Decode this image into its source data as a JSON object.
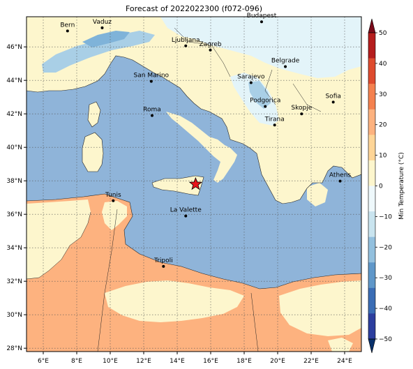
{
  "title": "Forecast of 2022022300 (f072-096)",
  "colors": {
    "sea": "#8fb4d9",
    "land_cool": "#e3f4f9",
    "land_mild": "#fdf6cd",
    "land_warm": "#fdb27f",
    "cold_band": "#a9cfe6",
    "colder_band": "#7fb3d9",
    "star": "#e8141b"
  },
  "axes": {
    "x_ticks": [
      "6°E",
      "8°E",
      "10°E",
      "12°E",
      "14°E",
      "16°E",
      "18°E",
      "20°E",
      "22°E",
      "24°E"
    ],
    "y_ticks": [
      "28°N",
      "30°N",
      "32°N",
      "34°N",
      "36°N",
      "38°N",
      "40°N",
      "42°N",
      "44°N",
      "46°N"
    ],
    "lon_range": [
      5,
      25
    ],
    "lat_range": [
      27.8,
      47.8
    ],
    "grid": true
  },
  "cities": [
    {
      "name": "Bern",
      "lon": 7.45,
      "lat": 46.95
    },
    {
      "name": "Vaduz",
      "lon": 9.52,
      "lat": 47.14
    },
    {
      "name": "Budapest",
      "lon": 19.04,
      "lat": 47.5
    },
    {
      "name": "Ljubljana",
      "lon": 14.51,
      "lat": 46.06
    },
    {
      "name": "Zagreb",
      "lon": 15.98,
      "lat": 45.81
    },
    {
      "name": "Belgrade",
      "lon": 20.46,
      "lat": 44.82
    },
    {
      "name": "San Marino",
      "lon": 12.45,
      "lat": 43.94
    },
    {
      "name": "Sarajevo",
      "lon": 18.41,
      "lat": 43.86
    },
    {
      "name": "Sofia",
      "lon": 23.32,
      "lat": 42.7
    },
    {
      "name": "Podgorica",
      "lon": 19.26,
      "lat": 42.44
    },
    {
      "name": "Skopje",
      "lon": 21.43,
      "lat": 42.0
    },
    {
      "name": "Roma",
      "lon": 12.5,
      "lat": 41.9
    },
    {
      "name": "Tirana",
      "lon": 19.82,
      "lat": 41.33
    },
    {
      "name": "Athens",
      "lon": 23.73,
      "lat": 37.98
    },
    {
      "name": "Tunis",
      "lon": 10.18,
      "lat": 36.81
    },
    {
      "name": "La Valette",
      "lon": 14.51,
      "lat": 35.9
    },
    {
      "name": "Tripoli",
      "lon": 13.18,
      "lat": 32.89
    }
  ],
  "marker": {
    "type": "star",
    "lon": 15.1,
    "lat": 37.8
  },
  "colorbar": {
    "label": "Min Temperature (°C)",
    "ticks": [
      "50",
      "40",
      "30",
      "20",
      "10",
      "0",
      "−10",
      "−20",
      "−30",
      "−40",
      "−50"
    ],
    "range": [
      -50,
      50
    ],
    "extend": "both",
    "colors": [
      "#08306b",
      "#2c3e9e",
      "#3a6db5",
      "#5f97c9",
      "#93c0de",
      "#c9e4ef",
      "#eef8fb",
      "#fdf6cd",
      "#fed597",
      "#fdb27f",
      "#f4814f",
      "#de4b2e",
      "#b51d1d",
      "#7a0a1a"
    ]
  }
}
